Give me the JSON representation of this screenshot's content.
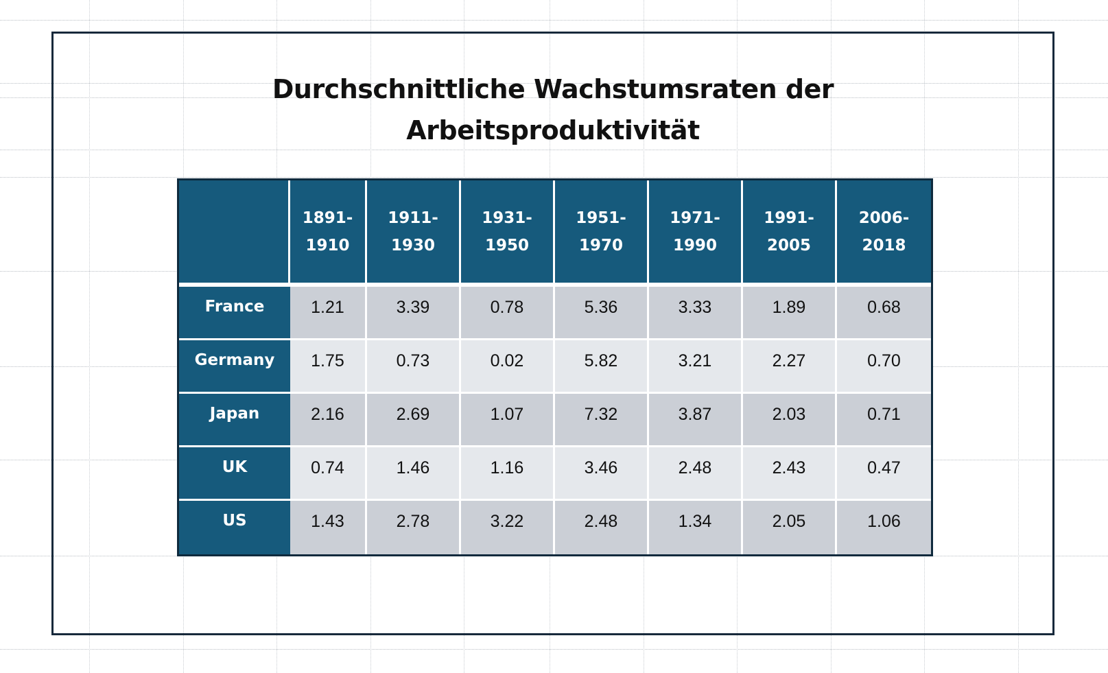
{
  "title": {
    "line1": "Durchschnittliche Wachstumsraten der",
    "line2": "Arbeitsproduktivität"
  },
  "table": {
    "columns": [
      {
        "line1": "1891-",
        "line2": "1910"
      },
      {
        "line1": "1911-",
        "line2": "1930"
      },
      {
        "line1": "1931-",
        "line2": "1950"
      },
      {
        "line1": "1951-",
        "line2": "1970"
      },
      {
        "line1": "1971-",
        "line2": "1990"
      },
      {
        "line1": "1991-",
        "line2": "2005"
      },
      {
        "line1": "2006-",
        "line2": "2018"
      }
    ],
    "rows": [
      {
        "label": "France",
        "values": [
          "1.21",
          "3.39",
          "0.78",
          "5.36",
          "3.33",
          "1.89",
          "0.68"
        ]
      },
      {
        "label": "Germany",
        "values": [
          "1.75",
          "0.73",
          "0.02",
          "5.82",
          "3.21",
          "2.27",
          "0.70"
        ]
      },
      {
        "label": "Japan",
        "values": [
          "2.16",
          "2.69",
          "1.07",
          "7.32",
          "3.87",
          "2.03",
          "0.71"
        ]
      },
      {
        "label": "UK",
        "values": [
          "0.74",
          "1.46",
          "1.16",
          "3.46",
          "2.48",
          "2.43",
          "0.47"
        ]
      },
      {
        "label": "US",
        "values": [
          "1.43",
          "2.78",
          "3.22",
          "2.48",
          "1.34",
          "2.05",
          "1.06"
        ]
      }
    ]
  },
  "colors": {
    "header_fill": "#165a7c",
    "odd_row_fill": "#cbcfd6",
    "even_row_fill": "#e5e8ec",
    "frame": "#17293b"
  }
}
